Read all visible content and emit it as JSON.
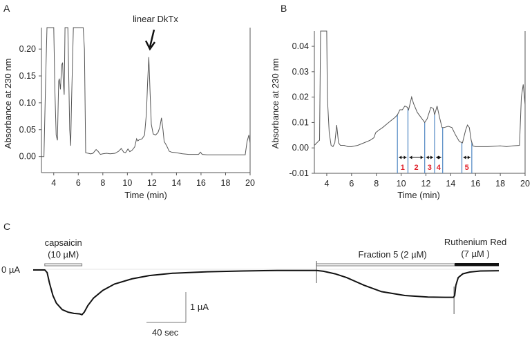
{
  "chart_data": [
    {
      "panel": "A",
      "type": "line",
      "title": "",
      "annotation": "linear DkTx",
      "annotation_x": 11.75,
      "xlabel": "Time (min)",
      "ylabel": "Absorbance at 230 nm",
      "xlim": [
        3,
        20
      ],
      "ylim": [
        -0.03,
        0.24
      ],
      "xticks": [
        4,
        6,
        8,
        10,
        12,
        14,
        16,
        18,
        20
      ],
      "yticks": [
        0.0,
        0.05,
        0.1,
        0.15,
        0.2
      ],
      "ytick_labels": [
        "0.00",
        "0.05",
        "0.10",
        "0.15",
        "0.20"
      ],
      "series": [
        {
          "name": "trace",
          "x": [
            3.0,
            3.2,
            3.35,
            3.45,
            3.55,
            3.7,
            3.9,
            4.0,
            4.1,
            4.2,
            4.3,
            4.4,
            4.45,
            4.55,
            4.65,
            4.72,
            4.78,
            4.85,
            4.92,
            5.0,
            5.1,
            5.15,
            5.3,
            5.38,
            5.45,
            5.6,
            5.75,
            5.9,
            6.0,
            6.1,
            6.2,
            6.3,
            6.4,
            6.5,
            6.6,
            7.0,
            7.2,
            7.45,
            7.6,
            7.8,
            8.0,
            8.3,
            8.6,
            9.0,
            9.3,
            9.5,
            9.7,
            9.85,
            10.05,
            10.2,
            10.4,
            10.6,
            10.75,
            10.85,
            10.95,
            11.2,
            11.4,
            11.55,
            11.65,
            11.75,
            11.85,
            11.95,
            12.1,
            12.3,
            12.5,
            12.65,
            12.78,
            12.9,
            13.0,
            13.2,
            13.4,
            13.6,
            14.0,
            14.5,
            15.0,
            15.5,
            15.8,
            15.95,
            16.1,
            16.5,
            17.0,
            18.0,
            19.0,
            19.6,
            19.75,
            19.9,
            20.0
          ],
          "y": [
            0.0,
            0.0,
            0.15,
            0.3,
            0.3,
            0.3,
            0.3,
            0.3,
            0.12,
            0.04,
            0.03,
            0.14,
            0.145,
            0.125,
            0.17,
            0.175,
            0.14,
            0.115,
            0.3,
            0.3,
            0.3,
            0.3,
            0.05,
            0.02,
            0.1,
            0.3,
            0.3,
            0.3,
            0.3,
            0.3,
            0.3,
            0.3,
            0.3,
            0.2,
            0.007,
            0.005,
            0.006,
            0.013,
            0.01,
            0.004,
            0.005,
            0.006,
            0.005,
            0.006,
            0.01,
            0.015,
            0.008,
            0.007,
            0.014,
            0.009,
            0.012,
            0.018,
            0.033,
            0.029,
            0.031,
            0.033,
            0.04,
            0.08,
            0.14,
            0.185,
            0.12,
            0.06,
            0.042,
            0.04,
            0.045,
            0.055,
            0.072,
            0.05,
            0.028,
            0.02,
            0.01,
            0.008,
            0.007,
            0.005,
            0.004,
            0.004,
            0.004,
            0.008,
            0.004,
            0.003,
            0.003,
            0.003,
            0.003,
            0.003,
            0.028,
            0.04,
            0.025
          ]
        }
      ]
    },
    {
      "panel": "B",
      "type": "line",
      "title": "",
      "xlabel": "Time (min)",
      "ylabel": "Absorbance at 230 nm",
      "xlim": [
        3,
        20
      ],
      "ylim": [
        -0.01,
        0.046
      ],
      "xticks": [
        4,
        6,
        8,
        10,
        12,
        14,
        16,
        18,
        20
      ],
      "yticks": [
        -0.01,
        0.0,
        0.01,
        0.02,
        0.03,
        0.04
      ],
      "ytick_labels": [
        "-0.01",
        "0.00",
        "0.01",
        "0.02",
        "0.03",
        "0.04"
      ],
      "series": [
        {
          "name": "trace",
          "x": [
            3.0,
            3.2,
            3.4,
            3.42,
            3.5,
            3.6,
            3.9,
            4.0,
            4.05,
            4.2,
            4.35,
            4.5,
            4.65,
            4.8,
            4.95,
            5.1,
            5.4,
            5.7,
            6.0,
            6.5,
            7.0,
            7.5,
            7.8,
            7.95,
            8.2,
            8.5,
            9.0,
            9.5,
            9.7,
            9.9,
            10.1,
            10.3,
            10.5,
            10.6,
            10.85,
            11.0,
            11.3,
            11.6,
            11.9,
            12.1,
            12.4,
            12.6,
            12.7,
            12.9,
            13.1,
            13.3,
            13.45,
            13.8,
            14.1,
            14.4,
            14.7,
            14.95,
            15.2,
            15.35,
            15.5,
            15.65,
            15.8,
            16.0,
            17.0,
            18.0,
            18.5,
            19.0,
            19.55,
            19.7,
            19.85,
            20.0
          ],
          "y": [
            0.001,
            0.002,
            0.003,
            0.003,
            0.05,
            0.05,
            0.05,
            0.05,
            0.02,
            0.006,
            0.001,
            0.0005,
            0.002,
            0.009,
            0.002,
            0.001,
            0.001,
            0.0005,
            0.0005,
            0.001,
            0.002,
            0.003,
            0.004,
            0.006,
            0.007,
            0.008,
            0.01,
            0.012,
            0.013,
            0.015,
            0.015,
            0.0165,
            0.016,
            0.015,
            0.02,
            0.0175,
            0.014,
            0.012,
            0.01,
            0.0115,
            0.016,
            0.0155,
            0.013,
            0.0165,
            0.012,
            0.008,
            0.008,
            0.0085,
            0.008,
            0.005,
            0.0025,
            0.002,
            0.007,
            0.009,
            0.008,
            0.003,
            0.0008,
            0.0005,
            0.0005,
            0.0008,
            0.0005,
            0.0008,
            0.001,
            0.02,
            0.025,
            0.017
          ]
        }
      ],
      "fractions": [
        {
          "label": "1",
          "start": 9.7,
          "end": 10.55
        },
        {
          "label": "2",
          "start": 10.55,
          "end": 11.9
        },
        {
          "label": "3",
          "start": 11.9,
          "end": 12.7
        },
        {
          "label": "4",
          "start": 12.7,
          "end": 13.35
        },
        {
          "label": "5",
          "start": 14.9,
          "end": 15.7
        }
      ]
    },
    {
      "panel": "C",
      "type": "line",
      "title": "",
      "xlabel": "",
      "ylabel": "",
      "baseline_label": "0 µA",
      "scale_bar": {
        "x_label": "40 sec",
        "x_value_sec": 40,
        "y_label": "1 µA",
        "y_value_uA": 1
      },
      "applications": [
        {
          "label_line1": "capsaicin",
          "label_line2": "(10 µM)",
          "start_s": 10,
          "end_s": 42,
          "style": "open"
        },
        {
          "label_line1": "Fraction 5 (2 µM)",
          "label_line2": "",
          "start_s": 244,
          "end_s": 363,
          "style": "open"
        },
        {
          "label_line1": "Ruthenium Red",
          "label_line2": "(7 µM )",
          "start_s": 363,
          "end_s": 401,
          "style": "filled"
        }
      ],
      "xlim_s": [
        0,
        401
      ],
      "ylim_uA": [
        -2.1,
        0.3
      ],
      "series": [
        {
          "name": "current",
          "t_s": [
            0,
            10,
            12,
            14,
            17,
            20,
            25,
            30,
            35,
            40,
            42,
            44,
            47,
            52,
            60,
            70,
            85,
            100,
            120,
            150,
            180,
            210,
            240,
            244,
            250,
            260,
            270,
            285,
            300,
            320,
            340,
            355,
            362,
            363,
            364,
            366,
            370,
            376,
            385,
            401
          ],
          "i_uA": [
            0,
            0,
            -0.1,
            -0.5,
            -1.0,
            -1.3,
            -1.55,
            -1.65,
            -1.7,
            -1.72,
            -1.75,
            -1.65,
            -1.4,
            -1.1,
            -0.8,
            -0.55,
            -0.35,
            -0.22,
            -0.13,
            -0.07,
            -0.04,
            -0.02,
            -0.02,
            -0.02,
            -0.05,
            -0.15,
            -0.3,
            -0.6,
            -0.85,
            -1.0,
            -1.06,
            -1.07,
            -1.07,
            -1.0,
            -0.6,
            -0.3,
            -0.15,
            -0.08,
            -0.04,
            -0.03
          ]
        }
      ]
    }
  ],
  "labels": {
    "panel_a": "A",
    "panel_b": "B",
    "panel_c": "C"
  }
}
